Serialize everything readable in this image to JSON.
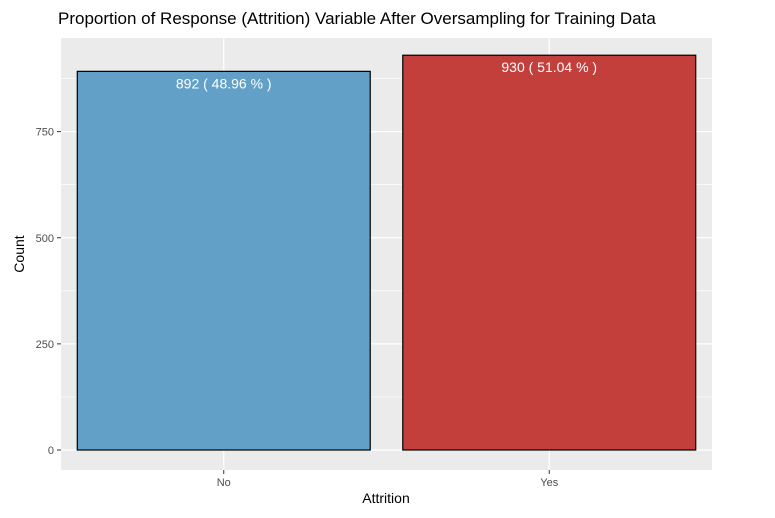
{
  "chart_data": {
    "type": "bar",
    "title": "Proportion of Response (Attrition) Variable After Oversampling for Training Data",
    "xlabel": "Attrition",
    "ylabel": "Count",
    "categories": [
      "No",
      "Yes"
    ],
    "values": [
      892,
      930
    ],
    "bar_labels": [
      "892 ( 48.96 % )",
      "930 ( 51.04 % )"
    ],
    "bar_colors": [
      "#62a0c7",
      "#c33f3b"
    ],
    "ylim": [
      0,
      930
    ],
    "yticks": [
      0,
      250,
      500,
      750
    ],
    "ytick_labels": [
      "0",
      "250",
      "500",
      "750"
    ],
    "grid": true,
    "legend": "none",
    "colors": {
      "panel_background": "#ebebeb",
      "grid_major": "#ffffff",
      "bar_outline": "#000000"
    }
  }
}
